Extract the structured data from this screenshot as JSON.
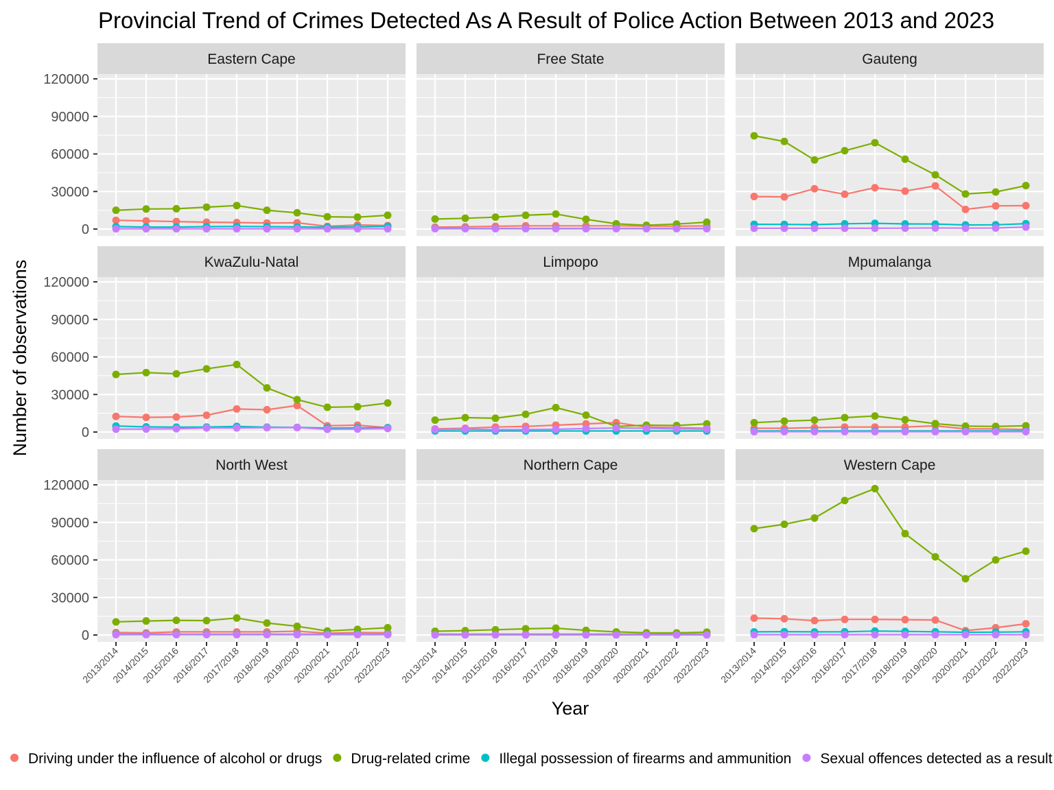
{
  "chart_data": {
    "type": "line",
    "title": "Provincial Trend of Crimes Detected As A Result of Police Action Between 2013 and 2023",
    "xlabel": "Year",
    "ylabel": "Number of observations",
    "ylim": [
      0,
      120000
    ],
    "yticks": [
      0,
      30000,
      60000,
      90000,
      120000
    ],
    "grid": true,
    "legend_position": "bottom",
    "categories": [
      "2013/2014",
      "2014/2015",
      "2015/2016",
      "2016/2017",
      "2017/2018",
      "2018/2019",
      "2019/2020",
      "2020/2021",
      "2021/2022",
      "2022/2023"
    ],
    "series_info": [
      {
        "name": "Driving under the influence of alcohol or drugs",
        "color": "#F8766D"
      },
      {
        "name": "Drug-related crime",
        "color": "#7CAE00"
      },
      {
        "name": "Illegal possession of firearms and ammunition",
        "color": "#00BFC4"
      },
      {
        "name": "Sexual offences detected as a result of police action",
        "color": "#C77CFF"
      }
    ],
    "panels": [
      {
        "name": "Eastern Cape",
        "series": [
          [
            7000,
            6500,
            6000,
            5500,
            5200,
            4800,
            5000,
            2200,
            3300,
            2800
          ],
          [
            15000,
            16000,
            16200,
            17500,
            18800,
            15000,
            13000,
            9800,
            9500,
            11000
          ],
          [
            2000,
            1600,
            1600,
            1900,
            2100,
            1900,
            1700,
            1400,
            1700,
            2100
          ],
          [
            200,
            200,
            200,
            200,
            200,
            200,
            200,
            200,
            200,
            200
          ]
        ]
      },
      {
        "name": "Free State",
        "series": [
          [
            1500,
            1800,
            2200,
            2600,
            2600,
            2600,
            2600,
            2300,
            2300,
            2500
          ],
          [
            8000,
            8600,
            9500,
            11000,
            12000,
            7800,
            4200,
            3000,
            4000,
            5500
          ],
          [
            500,
            500,
            500,
            500,
            500,
            500,
            500,
            500,
            500,
            500
          ],
          [
            300,
            300,
            300,
            300,
            300,
            300,
            300,
            300,
            300,
            300
          ]
        ]
      },
      {
        "name": "Gauteng",
        "series": [
          [
            26000,
            25700,
            32200,
            27800,
            33000,
            30300,
            34500,
            15700,
            18500,
            18700
          ],
          [
            74500,
            70000,
            55200,
            62600,
            69000,
            55800,
            43300,
            28000,
            29600,
            34700
          ],
          [
            3800,
            3700,
            3500,
            4200,
            4600,
            4100,
            4000,
            3300,
            3400,
            4300
          ],
          [
            600,
            600,
            600,
            600,
            600,
            700,
            800,
            700,
            800,
            1600
          ]
        ]
      },
      {
        "name": "KwaZulu-Natal",
        "series": [
          [
            12500,
            11700,
            12000,
            13400,
            18400,
            17800,
            21200,
            5000,
            5500,
            3500
          ],
          [
            46000,
            47500,
            46500,
            50500,
            54000,
            35300,
            25900,
            19800,
            20200,
            23200
          ],
          [
            4800,
            4100,
            3900,
            4000,
            4500,
            3900,
            3700,
            3200,
            3300,
            3500
          ],
          [
            2300,
            2400,
            2600,
            3300,
            3300,
            3500,
            3600,
            2200,
            2400,
            2800
          ]
        ]
      },
      {
        "name": "Limpopo",
        "series": [
          [
            2500,
            3000,
            4000,
            4500,
            5500,
            6500,
            7500,
            4000,
            3500,
            3000
          ],
          [
            9500,
            11500,
            11000,
            14200,
            19500,
            13500,
            4500,
            5500,
            5200,
            6500
          ],
          [
            800,
            800,
            800,
            800,
            800,
            800,
            800,
            800,
            800,
            800
          ],
          [
            2000,
            2300,
            2000,
            2000,
            2200,
            2800,
            3300,
            3000,
            2500,
            2300
          ]
        ]
      },
      {
        "name": "Mpumalanga",
        "series": [
          [
            3000,
            3000,
            3500,
            4000,
            4000,
            4000,
            5000,
            2500,
            2500,
            2000
          ],
          [
            7500,
            8700,
            9500,
            11500,
            12800,
            9800,
            6700,
            4700,
            4500,
            5000
          ],
          [
            900,
            900,
            900,
            900,
            900,
            900,
            900,
            900,
            900,
            900
          ],
          [
            300,
            300,
            300,
            300,
            300,
            300,
            300,
            300,
            300,
            300
          ]
        ]
      },
      {
        "name": "North West",
        "series": [
          [
            2000,
            1700,
            2500,
            2500,
            2500,
            2500,
            3000,
            1500,
            2000,
            1800
          ],
          [
            10500,
            11200,
            11700,
            11500,
            13600,
            9600,
            7000,
            3200,
            4500,
            5800
          ],
          [
            600,
            600,
            600,
            600,
            600,
            600,
            600,
            600,
            600,
            600
          ],
          [
            300,
            300,
            300,
            300,
            300,
            300,
            300,
            300,
            300,
            300
          ]
        ]
      },
      {
        "name": "Northern Cape",
        "series": [
          [
            700,
            700,
            700,
            700,
            700,
            700,
            700,
            700,
            700,
            700
          ],
          [
            3000,
            3500,
            4200,
            5000,
            5500,
            3700,
            2500,
            1800,
            1700,
            2300
          ],
          [
            300,
            300,
            300,
            300,
            300,
            300,
            300,
            300,
            300,
            300
          ],
          [
            100,
            100,
            100,
            100,
            100,
            100,
            100,
            100,
            100,
            100
          ]
        ]
      },
      {
        "name": "Western Cape",
        "series": [
          [
            13500,
            13000,
            11500,
            12500,
            12500,
            12300,
            12000,
            3500,
            5800,
            9000
          ],
          [
            85000,
            88500,
            93500,
            107500,
            117000,
            81000,
            62500,
            45000,
            60000,
            67000
          ],
          [
            2500,
            2700,
            2500,
            2600,
            3200,
            2900,
            2600,
            2200,
            2300,
            2600
          ],
          [
            300,
            300,
            300,
            300,
            300,
            300,
            300,
            300,
            300,
            300
          ]
        ]
      }
    ]
  }
}
